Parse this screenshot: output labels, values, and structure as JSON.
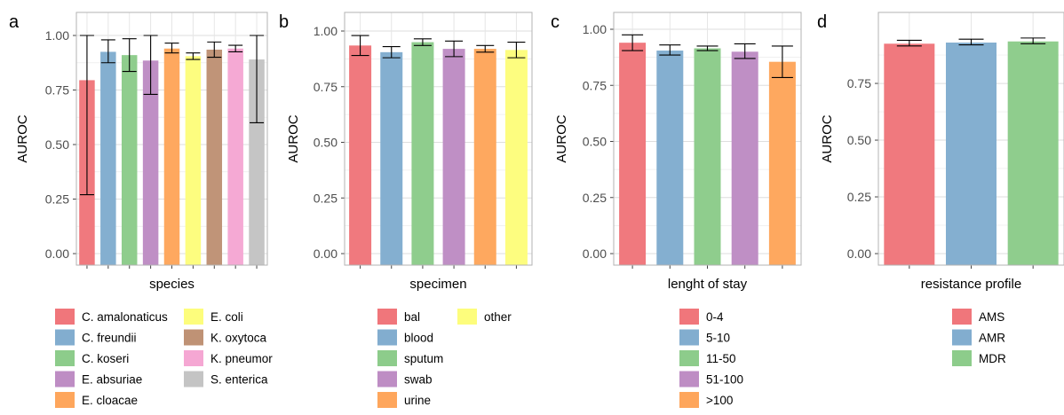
{
  "colors": {
    "red": "#f0767b",
    "blue": "#82adcf",
    "green": "#8dcc8b",
    "purple": "#be8dc4",
    "orange": "#fea65c",
    "yellow": "#fdfd7c",
    "brown": "#bf9275",
    "pink": "#f5a7d3",
    "grey": "#c4c4c4"
  },
  "chart_data": [
    {
      "panel": "a",
      "type": "bar",
      "xlabel": "species",
      "ylabel": "AUROC",
      "ylim": [
        0,
        1
      ],
      "yticks": [
        0.0,
        0.25,
        0.5,
        0.75,
        1.0
      ],
      "ytick_labels": [
        "0.00",
        "0.25",
        "0.50",
        "0.75",
        "1.00"
      ],
      "grid": true,
      "legend_position": "bottom",
      "legend_columns": 2,
      "categories": [
        "C. amalonaticus",
        "C. freundii",
        "C. koseri",
        "E. absuriae",
        "E. cloacae",
        "E. coli",
        "K. oxytoca",
        "K. pneumor",
        "S. enterica"
      ],
      "values": [
        0.795,
        0.925,
        0.91,
        0.885,
        0.94,
        0.905,
        0.935,
        0.94,
        0.89
      ],
      "err_low": [
        0.27,
        0.875,
        0.835,
        0.73,
        0.92,
        0.89,
        0.9,
        0.925,
        0.6
      ],
      "err_high": [
        1.0,
        0.98,
        0.985,
        1.0,
        0.965,
        0.92,
        0.97,
        0.955,
        1.0
      ],
      "colors": [
        "red",
        "blue",
        "green",
        "purple",
        "orange",
        "yellow",
        "brown",
        "pink",
        "grey"
      ]
    },
    {
      "panel": "b",
      "type": "bar",
      "xlabel": "specimen",
      "ylabel": "AUROC",
      "ylim": [
        0,
        1
      ],
      "yticks": [
        0.0,
        0.25,
        0.5,
        0.75,
        1.0
      ],
      "ytick_labels": [
        "0.00",
        "0.25",
        "0.50",
        "0.75",
        "1.00"
      ],
      "grid": true,
      "legend_position": "bottom",
      "legend_columns": 2,
      "categories": [
        "bal",
        "blood",
        "sputum",
        "swab",
        "urine",
        "other"
      ],
      "values": [
        0.935,
        0.905,
        0.95,
        0.92,
        0.92,
        0.915
      ],
      "err_low": [
        0.89,
        0.88,
        0.935,
        0.885,
        0.905,
        0.88
      ],
      "err_high": [
        0.98,
        0.93,
        0.965,
        0.955,
        0.935,
        0.95
      ],
      "colors": [
        "red",
        "blue",
        "green",
        "purple",
        "orange",
        "yellow"
      ]
    },
    {
      "panel": "c",
      "type": "bar",
      "xlabel": "lenght of stay",
      "ylabel": "AUROC",
      "ylim": [
        0,
        1
      ],
      "yticks": [
        0.0,
        0.25,
        0.5,
        0.75,
        1.0
      ],
      "ytick_labels": [
        "0.00",
        "0.25",
        "0.50",
        "0.75",
        "1.00"
      ],
      "grid": true,
      "legend_position": "bottom",
      "legend_columns": 1,
      "categories": [
        "0-4",
        "5-10",
        "11-50",
        "51-100",
        ">100"
      ],
      "values": [
        0.94,
        0.905,
        0.915,
        0.9,
        0.855
      ],
      "err_low": [
        0.905,
        0.885,
        0.905,
        0.87,
        0.785
      ],
      "err_high": [
        0.975,
        0.93,
        0.925,
        0.935,
        0.925
      ],
      "colors": [
        "red",
        "blue",
        "green",
        "purple",
        "orange"
      ]
    },
    {
      "panel": "d",
      "type": "bar",
      "xlabel": "resistance profile",
      "ylabel": "AUROC",
      "ylim": [
        0,
        0.93
      ],
      "yticks": [
        0.0,
        0.25,
        0.5,
        0.75
      ],
      "ytick_labels": [
        "0.00",
        "0.25",
        "0.50",
        "0.75"
      ],
      "grid": true,
      "legend_position": "bottom",
      "legend_columns": 1,
      "categories": [
        "AMS",
        "AMR",
        "MDR"
      ],
      "values": [
        0.925,
        0.93,
        0.935
      ],
      "err_low": [
        0.915,
        0.92,
        0.925
      ],
      "err_high": [
        0.94,
        0.945,
        0.95
      ],
      "colors": [
        "red",
        "blue",
        "green"
      ]
    }
  ]
}
